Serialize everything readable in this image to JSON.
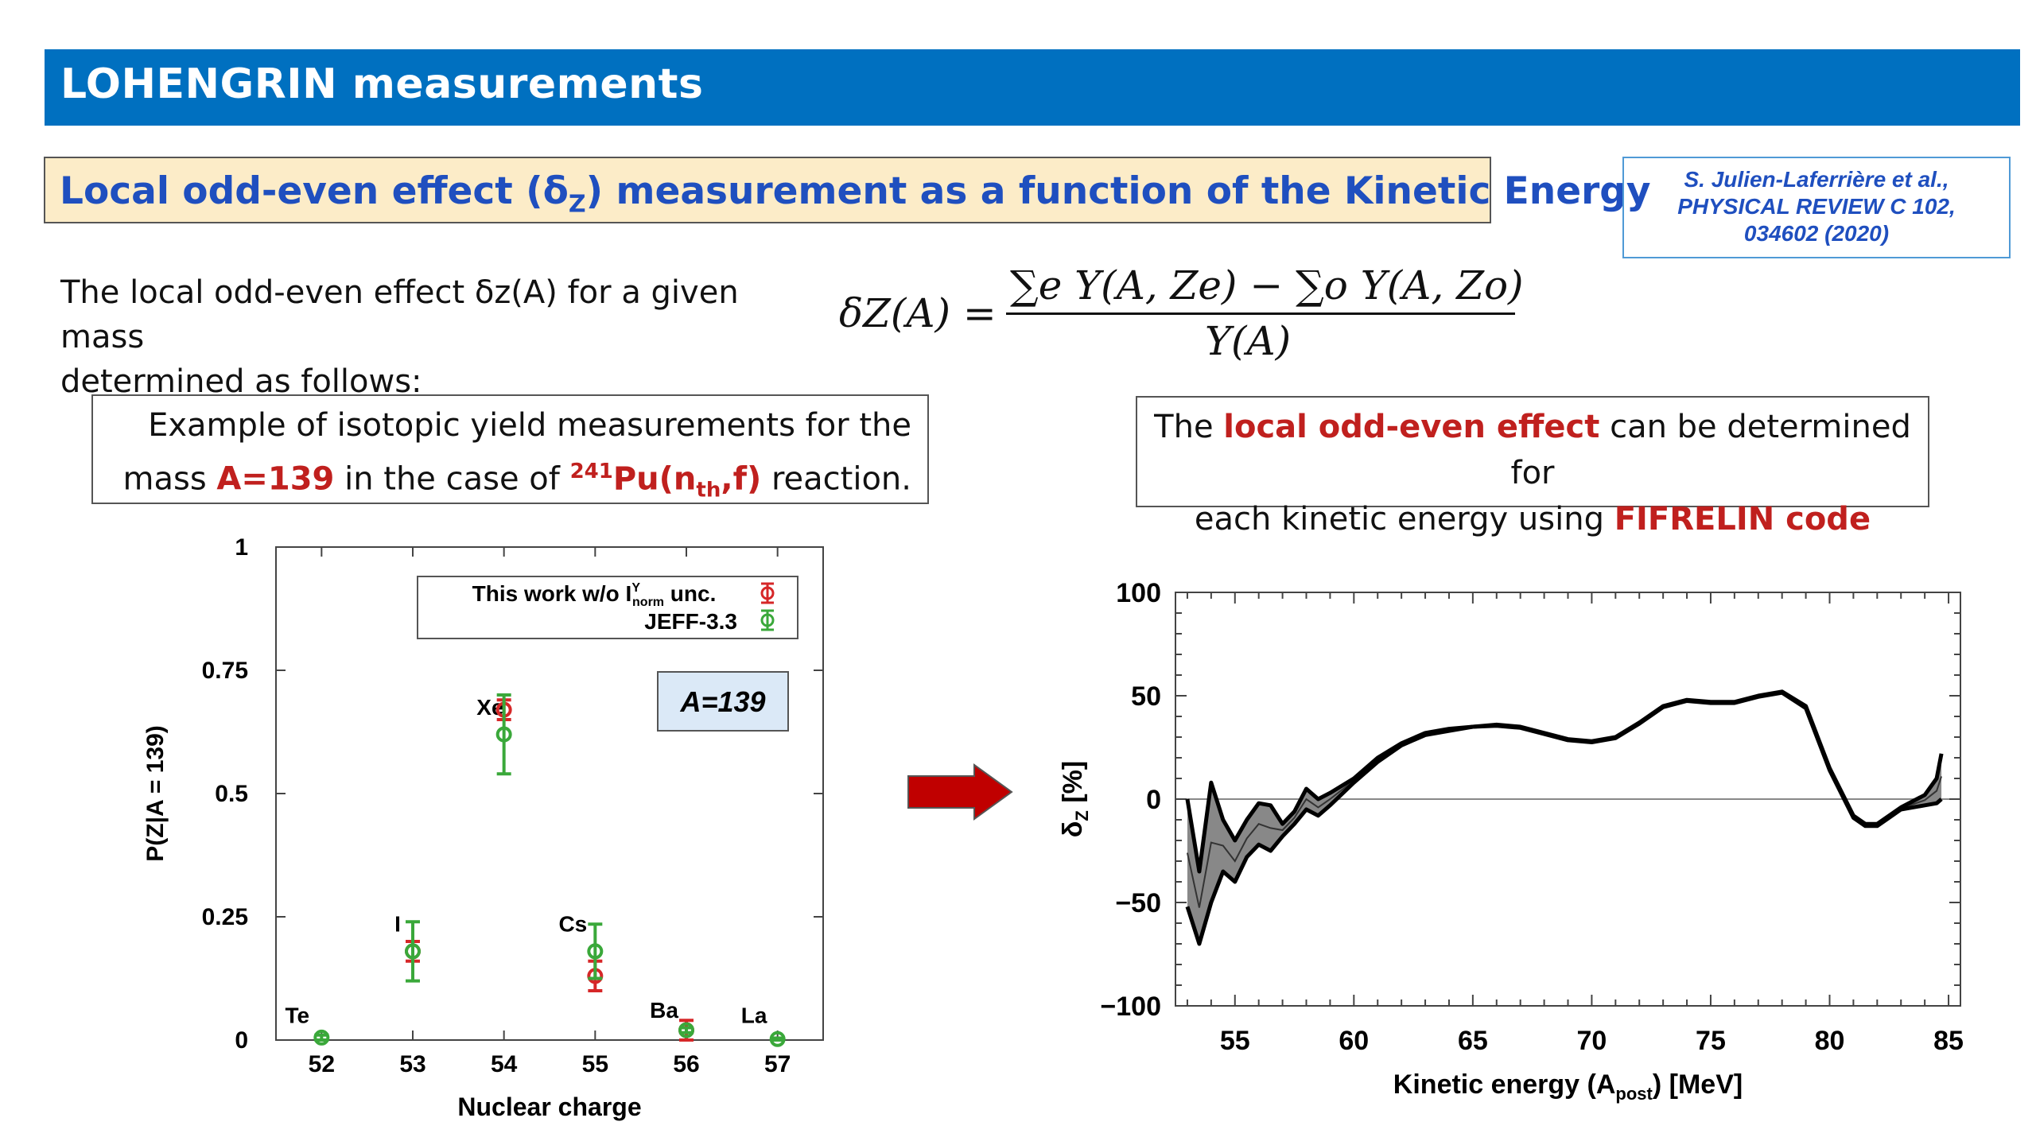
{
  "header": {
    "title": "LOHENGRIN measurements"
  },
  "subtitle": {
    "text": "Local odd-even effect (δ",
    "sub": "Z",
    "text2": ") measurement as a function of the Kinetic Energy"
  },
  "reference": {
    "line1": "S. Julien-Laferrière et al.,",
    "line2": "PHYSICAL REVIEW C 102,",
    "line3": "034602 (2020)"
  },
  "intro": {
    "line1": "The local odd-even effect δz(A) for a given mass",
    "line2": "determined as follows:"
  },
  "formula": {
    "lhs": "δZ(A) =",
    "numerator": "∑e Y(A, Ze) − ∑o Y(A, Zo)",
    "denominator": "Y(A)"
  },
  "left_callout": {
    "l1": "Example of isotopic yield measurements for the",
    "l2a": "mass ",
    "l2b": "A=139",
    "l2c": " in the case of ",
    "l2d_sup": "241",
    "l2d": "Pu(n",
    "l2d_sub": "th",
    "l2e": ",f)",
    "l2f": " reaction."
  },
  "right_callout": {
    "l1a": "The ",
    "l1b": "local odd-even effect",
    "l1c": " can be determined for",
    "l2a": "each kinetic energy using ",
    "l2b": "FIFRELIN code"
  },
  "colors": {
    "title_bg": "#0070c0",
    "red": "#c0201e",
    "green": "#3aa83a",
    "subtitle_blue": "#1f4fbf"
  },
  "chart_data": [
    {
      "type": "scatter",
      "xlabel": "Nuclear charge",
      "ylabel": "P(Z|A = 139)",
      "xlim": [
        51.5,
        57.5
      ],
      "ylim": [
        0,
        1
      ],
      "x_ticks": [
        "52",
        "53",
        "54",
        "55",
        "56",
        "57"
      ],
      "y_ticks": [
        "0",
        "0.25",
        "0.5",
        "0.75",
        "1"
      ],
      "annotation": "A=139",
      "legend": {
        "placement": "top-right",
        "entry1": "This work w/o I",
        "entry1_sup": "Y",
        "entry1_sub": "norm",
        "entry1_end": " unc.",
        "entry2": "JEFF-3.3"
      },
      "element_labels": [
        {
          "label": "Te",
          "x": 51.6,
          "y": 0.035
        },
        {
          "label": "I",
          "x": 52.8,
          "y": 0.22
        },
        {
          "label": "Xe",
          "x": 53.7,
          "y": 0.66
        },
        {
          "label": "Cs",
          "x": 54.6,
          "y": 0.22
        },
        {
          "label": "Ba",
          "x": 55.6,
          "y": 0.045
        },
        {
          "label": "La",
          "x": 56.6,
          "y": 0.035
        }
      ],
      "series": [
        {
          "name": "This work w/o I norm unc.",
          "color": "#d62728",
          "points": [
            {
              "x": 53,
              "y": 0.18,
              "err": 0.02
            },
            {
              "x": 54,
              "y": 0.67,
              "err": 0.02
            },
            {
              "x": 55,
              "y": 0.13,
              "err": 0.03
            },
            {
              "x": 56,
              "y": 0.02,
              "err": 0.02
            }
          ]
        },
        {
          "name": "JEFF-3.3",
          "color": "#3aa83a",
          "points": [
            {
              "x": 52,
              "y": 0.005,
              "err": 0.005
            },
            {
              "x": 53,
              "y": 0.18,
              "err": 0.06
            },
            {
              "x": 54,
              "y": 0.62,
              "err": 0.08
            },
            {
              "x": 55,
              "y": 0.18,
              "err": 0.055
            },
            {
              "x": 56,
              "y": 0.02,
              "err": 0.005
            },
            {
              "x": 57,
              "y": 0.002,
              "err": 0.002
            }
          ]
        }
      ]
    },
    {
      "type": "line",
      "xlabel_pre": "Kinetic energy (A",
      "xlabel_sub": "post",
      "xlabel_post": ") [MeV]",
      "ylabel": "δ",
      "ylabel_sub": "Z",
      "ylabel_post": " [%]",
      "xlim": [
        52.5,
        85.5
      ],
      "ylim": [
        -100,
        100
      ],
      "x_ticks": [
        "55",
        "60",
        "65",
        "70",
        "75",
        "80",
        "85"
      ],
      "y_ticks": [
        "−100",
        "−50",
        "0",
        "50",
        "100"
      ],
      "reference_line": 0,
      "upper_curve": [
        [
          53,
          0
        ],
        [
          53.5,
          -35
        ],
        [
          54,
          8
        ],
        [
          54.5,
          -10
        ],
        [
          55,
          -20
        ],
        [
          55.5,
          -10
        ],
        [
          56,
          -2
        ],
        [
          56.5,
          -3
        ],
        [
          57,
          -12
        ],
        [
          57.5,
          -6
        ],
        [
          58,
          5
        ],
        [
          58.5,
          0
        ],
        [
          59,
          3
        ],
        [
          60,
          10
        ],
        [
          61,
          20
        ],
        [
          62,
          27
        ],
        [
          63,
          32
        ],
        [
          64,
          34
        ],
        [
          65,
          35
        ],
        [
          66,
          36
        ],
        [
          67,
          35
        ],
        [
          68,
          32
        ],
        [
          69,
          29
        ],
        [
          70,
          28
        ],
        [
          71,
          30
        ],
        [
          72,
          37
        ],
        [
          73,
          45
        ],
        [
          74,
          48
        ],
        [
          75,
          47
        ],
        [
          76,
          47
        ],
        [
          77,
          50
        ],
        [
          78,
          52
        ],
        [
          79,
          45
        ],
        [
          80,
          15
        ],
        [
          81,
          -8
        ],
        [
          81.5,
          -12
        ],
        [
          82,
          -12
        ],
        [
          82.5,
          -8
        ],
        [
          83,
          -4
        ],
        [
          84,
          2
        ],
        [
          84.5,
          10
        ],
        [
          84.7,
          22
        ]
      ],
      "lower_curve": [
        [
          53,
          -52
        ],
        [
          53.5,
          -70
        ],
        [
          54,
          -50
        ],
        [
          54.5,
          -35
        ],
        [
          55,
          -40
        ],
        [
          55.5,
          -28
        ],
        [
          56,
          -22
        ],
        [
          56.5,
          -25
        ],
        [
          57,
          -18
        ],
        [
          57.5,
          -12
        ],
        [
          58,
          -5
        ],
        [
          58.5,
          -8
        ],
        [
          59,
          -3
        ],
        [
          60,
          8
        ],
        [
          61,
          18
        ],
        [
          62,
          26
        ],
        [
          63,
          31
        ],
        [
          64,
          33
        ],
        [
          65,
          35
        ],
        [
          66,
          35.5
        ],
        [
          67,
          34.5
        ],
        [
          68,
          31.5
        ],
        [
          69,
          28.5
        ],
        [
          70,
          27.5
        ],
        [
          71,
          29.5
        ],
        [
          72,
          36.5
        ],
        [
          73,
          44.5
        ],
        [
          74,
          47.5
        ],
        [
          75,
          46.5
        ],
        [
          76,
          46.5
        ],
        [
          77,
          49.5
        ],
        [
          78,
          51.5
        ],
        [
          79,
          44
        ],
        [
          80,
          14
        ],
        [
          81,
          -9
        ],
        [
          81.5,
          -13
        ],
        [
          82,
          -13
        ],
        [
          82.5,
          -9
        ],
        [
          83,
          -5
        ],
        [
          84,
          -3
        ],
        [
          84.5,
          -2
        ],
        [
          84.7,
          0
        ]
      ]
    }
  ]
}
